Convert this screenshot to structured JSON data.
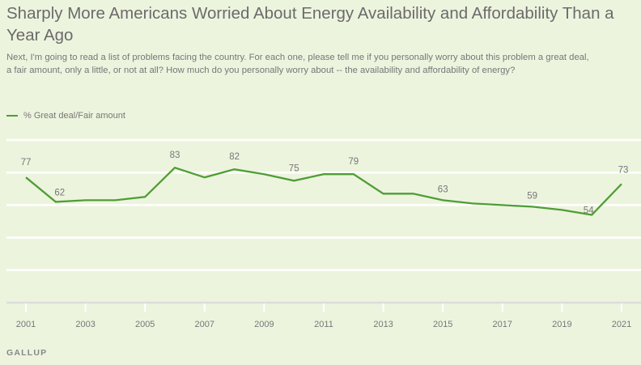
{
  "colors": {
    "line": "#4f9e35",
    "background": "#edf4de",
    "gridline": "#ffffff",
    "baseline": "#dcdcdc",
    "text": "#777777"
  },
  "header": {
    "title": "Sharply More Americans Worried About Energy Availability and Affordability Than a Year Ago",
    "subtitle": "Next, I'm going to read a list of problems facing the country. For each one, please tell me if you personally worry about this problem a great deal, a fair amount, only a little, or not at all? How much do you personally worry about -- the availability and affordability of energy?"
  },
  "footer": {
    "source": "GALLUP"
  },
  "chart_data": {
    "type": "line",
    "title": "Sharply More Americans Worried About Energy Availability and Affordability Than a Year Ago",
    "xlabel": "",
    "ylabel": "",
    "ylim": [
      0,
      100
    ],
    "grid": true,
    "legend_position": "top-left",
    "x": [
      2001,
      2002,
      2003,
      2004,
      2005,
      2006,
      2007,
      2008,
      2009,
      2010,
      2011,
      2012,
      2013,
      2014,
      2015,
      2016,
      2017,
      2018,
      2019,
      2020,
      2021
    ],
    "x_tick_labels": [
      "2001",
      "2003",
      "2005",
      "2007",
      "2009",
      "2011",
      "2013",
      "2015",
      "2017",
      "2019",
      "2021"
    ],
    "y_gridlines": [
      20,
      40,
      60,
      80,
      100
    ],
    "series": [
      {
        "name": "% Great deal/Fair amount",
        "values": [
          77,
          62,
          63,
          63,
          65,
          83,
          77,
          82,
          79,
          75,
          79,
          79,
          67,
          67,
          63,
          61,
          60,
          59,
          57,
          54,
          73
        ]
      }
    ],
    "data_labels": [
      {
        "x": 2001,
        "label": "77"
      },
      {
        "x": 2002,
        "label": "62"
      },
      {
        "x": 2006,
        "label": "83"
      },
      {
        "x": 2008,
        "label": "82"
      },
      {
        "x": 2010,
        "label": "75"
      },
      {
        "x": 2012,
        "label": "79"
      },
      {
        "x": 2015,
        "label": "63"
      },
      {
        "x": 2018,
        "label": "59"
      },
      {
        "x": 2020,
        "label": "54"
      },
      {
        "x": 2021,
        "label": "73"
      }
    ]
  }
}
